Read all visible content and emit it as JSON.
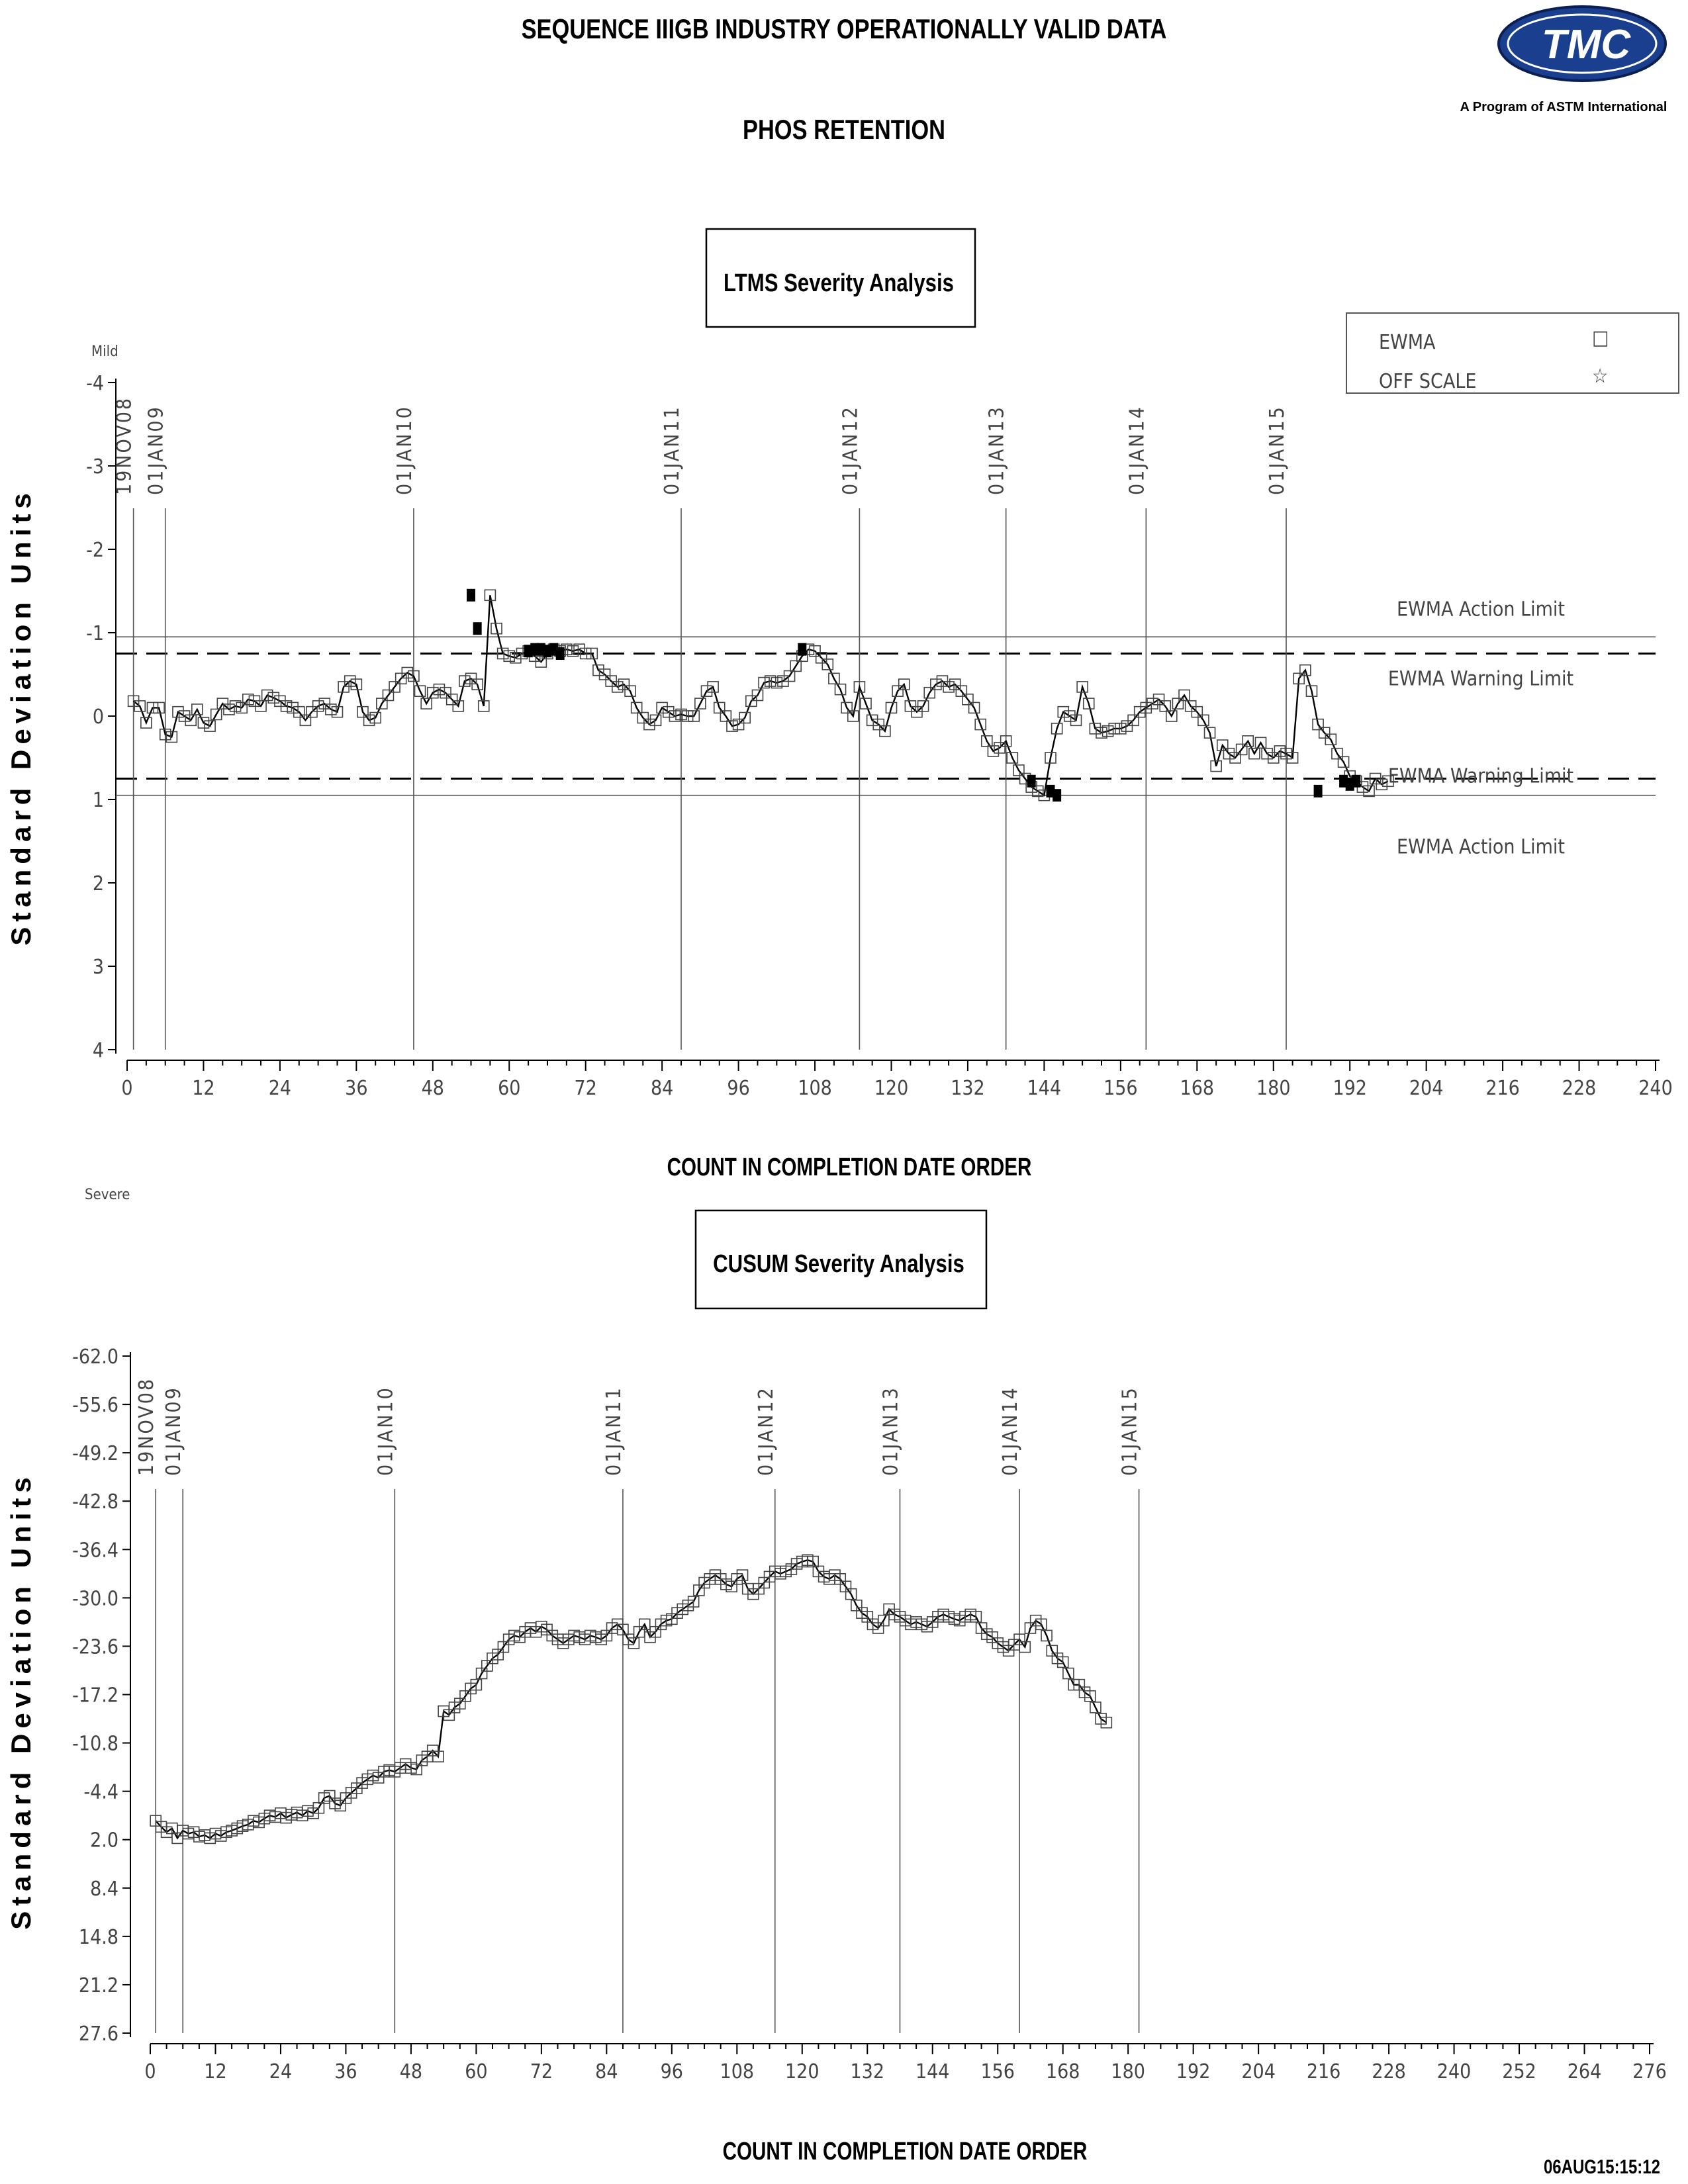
{
  "header": {
    "title": "SEQUENCE IIIGB INDUSTRY OPERATIONALLY VALID DATA",
    "subtitle": "PHOS RETENTION",
    "logo_text": "TMC",
    "logo_caption": "A Program of ASTM International",
    "timestamp": "06AUG15:15:12"
  },
  "legend": {
    "items": [
      {
        "label": "EWMA",
        "symbol": "□"
      },
      {
        "label": "OFF SCALE",
        "symbol": "☆"
      }
    ]
  },
  "chart_data": [
    {
      "type": "line",
      "title": "LTMS Severity Analysis",
      "xlabel": "COUNT IN COMPLETION DATE ORDER",
      "ylabel": "Standard Deviation Units",
      "y_top_label": "Mild",
      "y_bottom_label": "Severe",
      "xlim": [
        0,
        240
      ],
      "x_ticks": [
        0,
        12,
        24,
        36,
        48,
        60,
        72,
        84,
        96,
        108,
        120,
        132,
        144,
        156,
        168,
        180,
        192,
        204,
        216,
        228,
        240
      ],
      "ylim": [
        -4,
        4
      ],
      "y_inverted": true,
      "y_ticks": [
        -4,
        -3,
        -2,
        -1,
        0,
        1,
        2,
        3,
        4
      ],
      "date_markers": [
        {
          "label": "19NOV08",
          "x": 1
        },
        {
          "label": "01JAN09",
          "x": 6
        },
        {
          "label": "01JAN10",
          "x": 45
        },
        {
          "label": "01JAN11",
          "x": 87
        },
        {
          "label": "01JAN12",
          "x": 115
        },
        {
          "label": "01JAN13",
          "x": 138
        },
        {
          "label": "01JAN14",
          "x": 160
        },
        {
          "label": "01JAN15",
          "x": 182
        }
      ],
      "reference_lines": [
        {
          "label": "EWMA Action Limit",
          "y": -0.95,
          "style": "solid"
        },
        {
          "label": "EWMA Warning Limit",
          "y": -0.75,
          "style": "dashed"
        },
        {
          "label": "EWMA Warning Limit",
          "y": 0.75,
          "style": "dashed"
        },
        {
          "label": "EWMA Action Limit",
          "y": 0.95,
          "style": "solid"
        }
      ],
      "series": [
        {
          "name": "EWMA",
          "x_start": 1,
          "values": [
            -0.18,
            -0.12,
            0.08,
            -0.1,
            -0.1,
            0.22,
            0.25,
            -0.05,
            0.0,
            0.05,
            -0.08,
            0.08,
            0.12,
            -0.02,
            -0.15,
            -0.08,
            -0.12,
            -0.1,
            -0.2,
            -0.18,
            -0.12,
            -0.25,
            -0.22,
            -0.18,
            -0.12,
            -0.1,
            -0.05,
            0.05,
            -0.05,
            -0.12,
            -0.15,
            -0.08,
            -0.05,
            -0.35,
            -0.42,
            -0.38,
            -0.05,
            0.05,
            0.02,
            -0.15,
            -0.25,
            -0.35,
            -0.45,
            -0.52,
            -0.48,
            -0.3,
            -0.15,
            -0.28,
            -0.32,
            -0.28,
            -0.2,
            -0.12,
            -0.42,
            -0.45,
            -0.38,
            -0.12,
            -1.45,
            -1.05,
            -0.75,
            -0.72,
            -0.7,
            -0.75,
            -0.78,
            -0.72,
            -0.65,
            -0.75,
            -0.8,
            -0.78,
            -0.8,
            -0.78,
            -0.8,
            -0.75,
            -0.75,
            -0.55,
            -0.5,
            -0.42,
            -0.35,
            -0.38,
            -0.3,
            -0.1,
            0.02,
            0.1,
            0.05,
            -0.1,
            -0.05,
            0.0,
            -0.02,
            0.0,
            0.0,
            -0.15,
            -0.3,
            -0.35,
            -0.1,
            0.0,
            0.12,
            0.1,
            0.02,
            -0.18,
            -0.25,
            -0.4,
            -0.42,
            -0.4,
            -0.42,
            -0.48,
            -0.6,
            -0.72,
            -0.8,
            -0.78,
            -0.7,
            -0.62,
            -0.45,
            -0.32,
            -0.1,
            0.0,
            -0.35,
            -0.15,
            0.05,
            0.1,
            0.18,
            -0.1,
            -0.3,
            -0.38,
            -0.12,
            -0.05,
            -0.12,
            -0.28,
            -0.38,
            -0.42,
            -0.35,
            -0.38,
            -0.3,
            -0.2,
            -0.1,
            0.1,
            0.3,
            0.42,
            0.38,
            0.3,
            0.5,
            0.65,
            0.75,
            0.85,
            0.9,
            0.95,
            0.5,
            0.15,
            -0.05,
            0.0,
            0.05,
            -0.35,
            -0.15,
            0.15,
            0.2,
            0.18,
            0.15,
            0.15,
            0.12,
            0.05,
            -0.05,
            -0.1,
            -0.15,
            -0.2,
            -0.12,
            0.0,
            -0.15,
            -0.25,
            -0.12,
            -0.05,
            0.05,
            0.2,
            0.6,
            0.35,
            0.45,
            0.5,
            0.4,
            0.3,
            0.45,
            0.32,
            0.45,
            0.5,
            0.42,
            0.45,
            0.5,
            -0.45,
            -0.55,
            -0.3,
            0.1,
            0.2,
            0.28,
            0.45,
            0.55,
            0.72,
            0.78,
            0.85,
            0.9,
            0.75,
            0.82,
            0.78
          ]
        },
        {
          "name": "OFF SCALE",
          "points": [
            {
              "x": 54,
              "y": -1.45
            },
            {
              "x": 55,
              "y": -1.05
            },
            {
              "x": 63,
              "y": -0.78
            },
            {
              "x": 64,
              "y": -0.8
            },
            {
              "x": 65,
              "y": -0.8
            },
            {
              "x": 66,
              "y": -0.78
            },
            {
              "x": 67,
              "y": -0.8
            },
            {
              "x": 68,
              "y": -0.75
            },
            {
              "x": 106,
              "y": -0.8
            },
            {
              "x": 142,
              "y": 0.78
            },
            {
              "x": 145,
              "y": 0.9
            },
            {
              "x": 146,
              "y": 0.95
            },
            {
              "x": 187,
              "y": 0.9
            },
            {
              "x": 191,
              "y": 0.78
            },
            {
              "x": 192,
              "y": 0.82
            },
            {
              "x": 193,
              "y": 0.78
            }
          ]
        }
      ]
    },
    {
      "type": "line",
      "title": "CUSUM Severity Analysis",
      "xlabel": "COUNT IN COMPLETION DATE ORDER",
      "ylabel": "Standard Deviation Units",
      "xlim": [
        0,
        276
      ],
      "x_ticks": [
        0,
        12,
        24,
        36,
        48,
        60,
        72,
        84,
        96,
        108,
        120,
        132,
        144,
        156,
        168,
        180,
        192,
        204,
        216,
        228,
        240,
        252,
        264,
        276
      ],
      "ylim": [
        -62.0,
        27.6
      ],
      "y_inverted": true,
      "y_ticks": [
        -62.0,
        -55.6,
        -49.2,
        -42.8,
        -36.4,
        -30.0,
        -23.6,
        -17.2,
        -10.8,
        -4.4,
        2.0,
        8.4,
        14.8,
        21.2,
        27.6
      ],
      "date_markers": [
        {
          "label": "19NOV08",
          "x": 1
        },
        {
          "label": "01JAN09",
          "x": 6
        },
        {
          "label": "01JAN10",
          "x": 45
        },
        {
          "label": "01JAN11",
          "x": 87
        },
        {
          "label": "01JAN12",
          "x": 115
        },
        {
          "label": "01JAN13",
          "x": 138
        },
        {
          "label": "01JAN14",
          "x": 160
        },
        {
          "label": "01JAN15",
          "x": 182
        }
      ],
      "series": [
        {
          "name": "CUSUM",
          "x_start": 1,
          "values": [
            -0.5,
            0.3,
            1.0,
            0.5,
            1.8,
            0.8,
            1.2,
            1.0,
            1.6,
            1.4,
            1.8,
            1.2,
            1.5,
            1.0,
            0.8,
            0.5,
            0.2,
            0.0,
            -0.5,
            -0.3,
            -0.8,
            -1.2,
            -1.0,
            -1.5,
            -0.9,
            -1.3,
            -1.6,
            -1.2,
            -1.8,
            -1.5,
            -2.2,
            -3.5,
            -3.8,
            -2.8,
            -2.5,
            -3.5,
            -4.2,
            -4.8,
            -5.5,
            -6.0,
            -6.5,
            -6.2,
            -7.0,
            -7.2,
            -7.0,
            -7.5,
            -8.0,
            -7.5,
            -7.3,
            -8.5,
            -9.0,
            -9.8,
            -9.0,
            -15.0,
            -14.5,
            -15.5,
            -16.0,
            -17.0,
            -18.0,
            -18.5,
            -20.0,
            -21.0,
            -22.0,
            -22.5,
            -23.5,
            -24.5,
            -25.0,
            -24.8,
            -25.5,
            -26.0,
            -25.5,
            -26.2,
            -25.8,
            -25.0,
            -24.5,
            -24.0,
            -24.5,
            -25.0,
            -24.8,
            -24.5,
            -25.0,
            -24.8,
            -24.5,
            -25.0,
            -26.0,
            -26.5,
            -25.8,
            -24.5,
            -24.0,
            -25.5,
            -26.5,
            -24.8,
            -25.5,
            -26.5,
            -27.0,
            -27.2,
            -28.0,
            -28.5,
            -29.0,
            -29.5,
            -31.0,
            -32.0,
            -32.5,
            -33.0,
            -32.5,
            -31.8,
            -31.5,
            -32.5,
            -33.0,
            -31.2,
            -30.5,
            -31.2,
            -32.0,
            -32.8,
            -33.5,
            -33.2,
            -33.5,
            -33.8,
            -34.5,
            -34.8,
            -35.0,
            -34.8,
            -33.5,
            -32.8,
            -32.5,
            -33.0,
            -32.5,
            -31.5,
            -30.5,
            -29.0,
            -28.0,
            -27.5,
            -26.5,
            -26.0,
            -27.0,
            -28.5,
            -27.8,
            -27.5,
            -27.0,
            -26.5,
            -26.8,
            -26.5,
            -26.2,
            -26.8,
            -27.5,
            -27.8,
            -27.5,
            -27.2,
            -27.0,
            -27.5,
            -27.8,
            -27.5,
            -26.0,
            -25.2,
            -24.8,
            -24.0,
            -23.5,
            -23.0,
            -23.8,
            -24.5,
            -23.5,
            -26.0,
            -27.0,
            -26.5,
            -25.0,
            -23.0,
            -22.0,
            -21.5,
            -20.0,
            -18.5,
            -18.5,
            -17.5,
            -17.0,
            -15.5,
            -14.0,
            -13.5
          ]
        }
      ]
    }
  ]
}
